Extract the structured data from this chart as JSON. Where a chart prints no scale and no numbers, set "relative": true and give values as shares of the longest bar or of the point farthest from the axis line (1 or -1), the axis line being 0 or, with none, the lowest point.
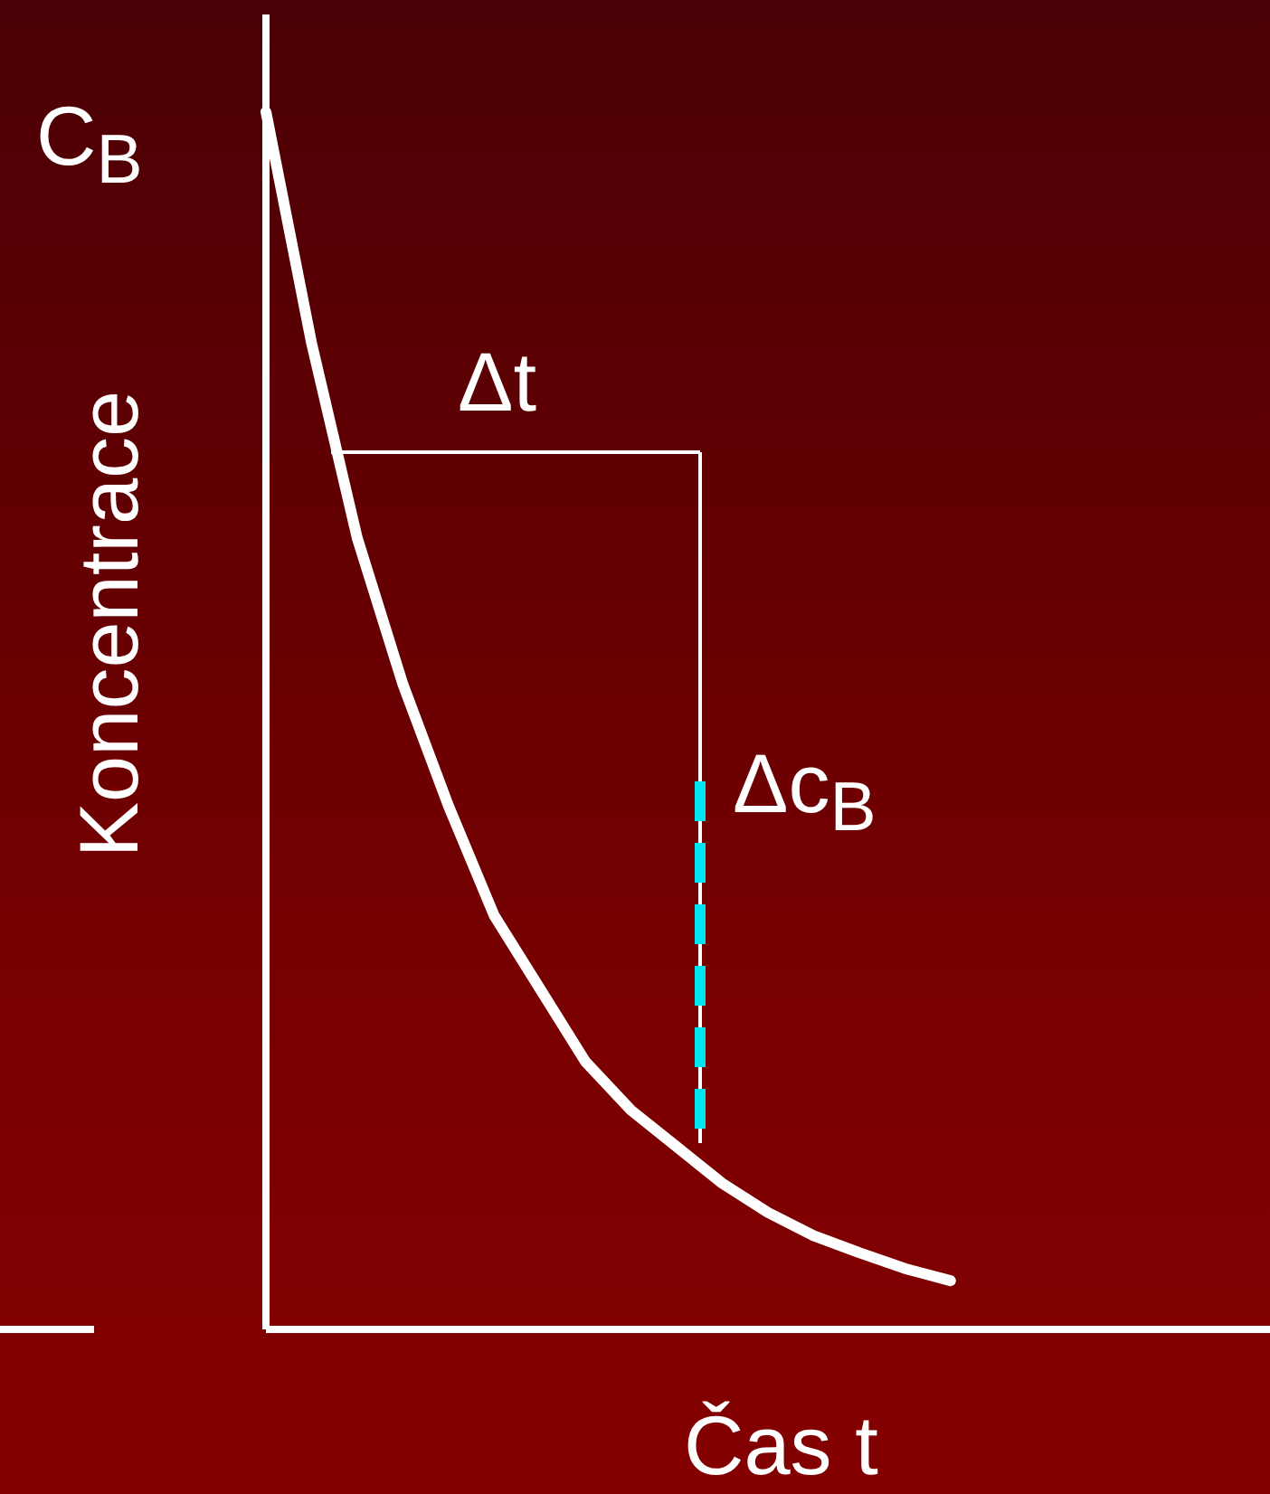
{
  "chart_data": {
    "type": "line",
    "relative": true,
    "ylabel": "Koncentrace",
    "xlabel": "Čas t",
    "annotations": [
      "C$_{B}$",
      "Δt",
      "Δc$_{B}$"
    ],
    "categories": [
      null,
      null,
      null,
      null,
      null,
      null,
      null,
      null,
      null,
      null,
      null,
      null,
      null,
      null,
      null,
      null,
      null,
      null,
      null,
      null,
      null,
      null,
      null
    ],
    "series": [
      {
        "color": "#ffffff",
        "values": [
          1,
          0.81,
          0.65,
          0.53,
          0.43,
          0.34,
          0.28,
          0.22,
          0.18,
          0.15,
          0.12,
          0.096,
          0.077,
          0.063,
          0.05,
          0.04,
          null,
          null,
          null,
          null,
          null,
          null,
          null
        ]
      }
    ],
    "grid": false,
    "legend": false,
    "marker": "none",
    "line_style": "solid"
  }
}
